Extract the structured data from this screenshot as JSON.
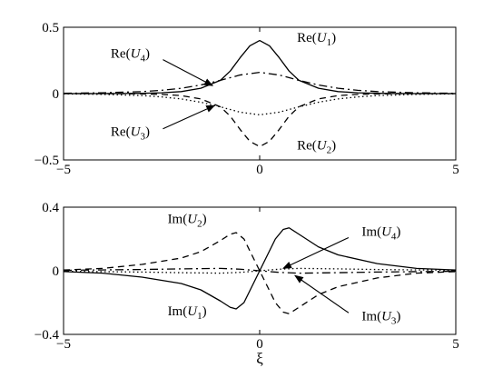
{
  "chart_data": [
    {
      "type": "line",
      "xlim": [
        -5,
        5
      ],
      "ylim": [
        -0.5,
        0.5
      ],
      "xticks": [
        -5,
        0,
        5
      ],
      "xtick_labels": [
        "−5",
        "0",
        "5"
      ],
      "yticks": [
        -0.5,
        0,
        0.5
      ],
      "ytick_labels": [
        "−0.5",
        "0",
        "0.5"
      ],
      "grid": false,
      "xlabel": "",
      "series": [
        {
          "name": "Re(U1)",
          "style": "solid",
          "color": "#000000",
          "x": [
            -5,
            -4,
            -3,
            -2.5,
            -2,
            -1.5,
            -1,
            -0.75,
            -0.5,
            -0.25,
            0,
            0.25,
            0.5,
            0.75,
            1,
            1.5,
            2,
            2.5,
            3,
            4,
            5
          ],
          "y": [
            0,
            0,
            0.002,
            0.006,
            0.015,
            0.04,
            0.1,
            0.17,
            0.27,
            0.36,
            0.4,
            0.36,
            0.27,
            0.17,
            0.1,
            0.04,
            0.015,
            0.006,
            0.002,
            0,
            0
          ]
        },
        {
          "name": "Re(U2)",
          "style": "dashed",
          "color": "#000000",
          "x": [
            -5,
            -4,
            -3,
            -2.5,
            -2,
            -1.5,
            -1,
            -0.75,
            -0.5,
            -0.25,
            0,
            0.25,
            0.5,
            0.75,
            1,
            1.5,
            2,
            2.5,
            3,
            4,
            5
          ],
          "y": [
            0,
            0,
            -0.002,
            -0.006,
            -0.015,
            -0.04,
            -0.1,
            -0.17,
            -0.27,
            -0.36,
            -0.4,
            -0.36,
            -0.27,
            -0.17,
            -0.1,
            -0.04,
            -0.015,
            -0.006,
            -0.002,
            0,
            0
          ]
        },
        {
          "name": "Re(U3)",
          "style": "dotted",
          "color": "#000000",
          "x": [
            -5,
            -4,
            -3,
            -2.5,
            -2,
            -1.5,
            -1,
            -0.5,
            0,
            0.5,
            1,
            1.5,
            2,
            2.5,
            3,
            4,
            5
          ],
          "y": [
            -0.002,
            -0.006,
            -0.015,
            -0.025,
            -0.04,
            -0.065,
            -0.1,
            -0.14,
            -0.16,
            -0.14,
            -0.1,
            -0.065,
            -0.04,
            -0.025,
            -0.015,
            -0.006,
            -0.002
          ]
        },
        {
          "name": "Re(U4)",
          "style": "dashdot",
          "color": "#000000",
          "x": [
            -5,
            -4,
            -3,
            -2.5,
            -2,
            -1.5,
            -1,
            -0.5,
            0,
            0.5,
            1,
            1.5,
            2,
            2.5,
            3,
            4,
            5
          ],
          "y": [
            0.002,
            0.006,
            0.015,
            0.025,
            0.04,
            0.065,
            0.1,
            0.14,
            0.16,
            0.14,
            0.1,
            0.065,
            0.04,
            0.025,
            0.015,
            0.006,
            0.002
          ]
        }
      ],
      "annotations": [
        {
          "series": "Re(U4)",
          "base": "Re(",
          "sub": "4",
          "close": ")",
          "x": -3.3,
          "y": 0.27,
          "arrow_to": [
            -1.2,
            0.06
          ]
        },
        {
          "series": "Re(U1)",
          "base": "Re(",
          "sub": "1",
          "close": ")",
          "x": 1.45,
          "y": 0.39
        },
        {
          "series": "Re(U3)",
          "base": "Re(",
          "sub": "3",
          "close": ")",
          "x": -3.3,
          "y": -0.32,
          "arrow_to": [
            -1.15,
            -0.09
          ]
        },
        {
          "series": "Re(U2)",
          "base": "Re(",
          "sub": "2",
          "close": ")",
          "x": 1.45,
          "y": -0.42
        }
      ]
    },
    {
      "type": "line",
      "xlim": [
        -5,
        5
      ],
      "ylim": [
        -0.4,
        0.4
      ],
      "xticks": [
        -5,
        0,
        5
      ],
      "xtick_labels": [
        "−5",
        "0",
        "5"
      ],
      "yticks": [
        -0.4,
        0,
        0.4
      ],
      "ytick_labels": [
        "−0.4",
        "0",
        "0.4"
      ],
      "grid": false,
      "xlabel": "ξ",
      "series": [
        {
          "name": "Im(U1)",
          "style": "solid",
          "color": "#000000",
          "x": [
            -5,
            -4,
            -3,
            -2,
            -1.5,
            -1,
            -0.75,
            -0.6,
            -0.4,
            -0.2,
            0,
            0.2,
            0.4,
            0.6,
            0.75,
            1,
            1.5,
            2,
            3,
            4,
            5
          ],
          "y": [
            -0.005,
            -0.015,
            -0.04,
            -0.08,
            -0.12,
            -0.19,
            -0.23,
            -0.24,
            -0.2,
            -0.1,
            0,
            0.1,
            0.2,
            0.26,
            0.27,
            0.23,
            0.15,
            0.1,
            0.045,
            0.015,
            0.005
          ]
        },
        {
          "name": "Im(U2)",
          "style": "dashed",
          "color": "#000000",
          "x": [
            -5,
            -4,
            -3,
            -2,
            -1.5,
            -1,
            -0.75,
            -0.6,
            -0.4,
            -0.2,
            0,
            0.2,
            0.4,
            0.6,
            0.75,
            1,
            1.5,
            2,
            3,
            4,
            5
          ],
          "y": [
            0.005,
            0.015,
            0.04,
            0.08,
            0.12,
            0.19,
            0.23,
            0.24,
            0.2,
            0.1,
            0,
            -0.1,
            -0.2,
            -0.26,
            -0.27,
            -0.23,
            -0.15,
            -0.1,
            -0.045,
            -0.015,
            -0.005
          ]
        },
        {
          "name": "Im(U3)",
          "style": "dotted",
          "color": "#000000",
          "x": [
            -5,
            -3,
            -2,
            -1,
            -0.5,
            0,
            0.5,
            1,
            2,
            3,
            5
          ],
          "y": [
            -0.003,
            -0.008,
            -0.012,
            -0.015,
            -0.01,
            0,
            0.01,
            0.015,
            0.012,
            0.008,
            0.003
          ]
        },
        {
          "name": "Im(U4)",
          "style": "dashdot",
          "color": "#000000",
          "x": [
            -5,
            -3,
            -2,
            -1,
            -0.5,
            0,
            0.5,
            1,
            2,
            3,
            5
          ],
          "y": [
            0.003,
            0.008,
            0.012,
            0.015,
            0.01,
            0,
            -0.01,
            -0.015,
            -0.012,
            -0.008,
            -0.003
          ]
        }
      ],
      "annotations": [
        {
          "series": "Im(U2)",
          "base": "Im(",
          "sub": "2",
          "close": ")",
          "x": -1.85,
          "y": 0.3
        },
        {
          "series": "Im(U4)",
          "base": "Im(",
          "sub": "4",
          "close": ")",
          "x": 3.1,
          "y": 0.22,
          "arrow_to": [
            0.6,
            0.015
          ]
        },
        {
          "series": "Im(U1)",
          "base": "Im(",
          "sub": "1",
          "close": ")",
          "x": -1.85,
          "y": -0.28
        },
        {
          "series": "Im(U3)",
          "base": "Im(",
          "sub": "3",
          "close": ")",
          "x": 3.1,
          "y": -0.31,
          "arrow_to": [
            0.9,
            -0.03
          ]
        }
      ]
    }
  ]
}
